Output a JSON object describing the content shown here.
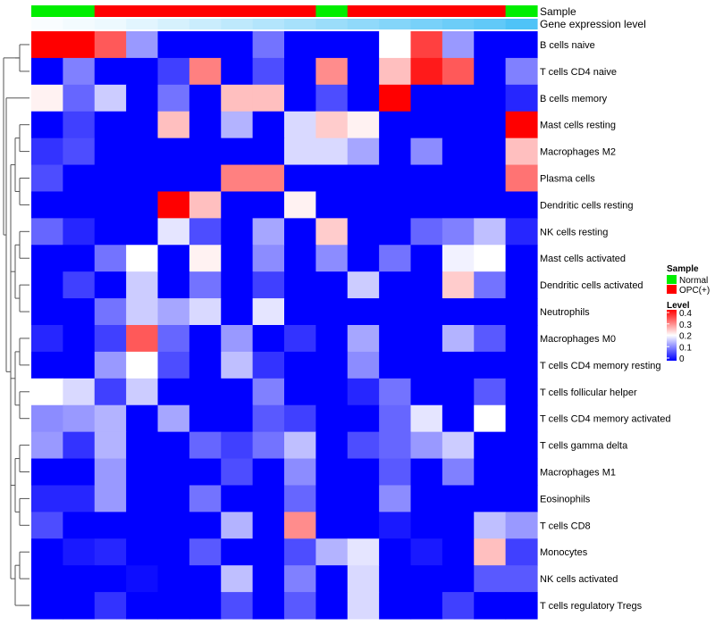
{
  "chart_data": {
    "type": "heatmap",
    "rows": [
      "B cells naive",
      "T cells CD4 naive",
      "B cells memory",
      "Mast cells resting",
      "Macrophages M2",
      "Plasma cells",
      "Dendritic cells resting",
      "NK cells resting",
      "Mast cells activated",
      "Dendritic cells activated",
      "Neutrophils",
      "Macrophages M0",
      "T cells CD4 memory resting",
      "T cells follicular helper",
      "T cells CD4 memory activated",
      "T cells gamma delta",
      "Macrophages M1",
      "Eosinophils",
      "T cells CD8",
      "Monocytes",
      "NK cells activated",
      "T cells regulatory  Tregs"
    ],
    "column_annotations": {
      "sample": {
        "label": "Sample",
        "values": [
          "Normal",
          "Normal",
          "OPC(+)",
          "OPC(+)",
          "OPC(+)",
          "OPC(+)",
          "OPC(+)",
          "OPC(+)",
          "OPC(+)",
          "Normal",
          "OPC(+)",
          "OPC(+)",
          "OPC(+)",
          "OPC(+)",
          "OPC(+)",
          "Normal"
        ]
      },
      "gene_expression": {
        "label": "Gene expression level",
        "values": [
          0.02,
          0.04,
          0.06,
          0.1,
          0.14,
          0.18,
          0.22,
          0.26,
          0.3,
          0.34,
          0.38,
          0.42,
          0.46,
          0.5,
          0.54,
          0.6
        ]
      }
    },
    "values": [
      [
        0.4,
        0.4,
        0.33,
        0.12,
        0,
        0,
        0,
        0.09,
        0,
        0,
        0,
        0.2,
        0.35,
        0.12,
        0,
        0
      ],
      [
        0,
        0.1,
        0,
        0,
        0.05,
        0.3,
        0,
        0.06,
        0,
        0.29,
        0,
        0.25,
        0.38,
        0.33,
        0,
        0.1
      ],
      [
        0.21,
        0.08,
        0.16,
        0,
        0.09,
        0,
        0.25,
        0.25,
        0,
        0.06,
        0,
        0.4,
        0,
        0,
        0,
        0.03
      ],
      [
        0,
        0.05,
        0,
        0,
        0.25,
        0,
        0.14,
        0,
        0.17,
        0.24,
        0.21,
        0,
        0,
        0,
        0,
        0.4
      ],
      [
        0.04,
        0.06,
        0,
        0,
        0,
        0,
        0,
        0,
        0.17,
        0.17,
        0.13,
        0,
        0.11,
        0,
        0,
        0.25
      ],
      [
        0.06,
        0,
        0,
        0,
        0,
        0,
        0.3,
        0.3,
        0,
        0,
        0,
        0,
        0,
        0,
        0,
        0.31
      ],
      [
        0,
        0,
        0,
        0,
        0.4,
        0.25,
        0,
        0,
        0.21,
        0,
        0,
        0,
        0,
        0,
        0,
        0
      ],
      [
        0.08,
        0.03,
        0,
        0,
        0.18,
        0.06,
        0,
        0.13,
        0,
        0.24,
        0,
        0,
        0.08,
        0.1,
        0.15,
        0.03
      ],
      [
        0,
        0,
        0.09,
        0.2,
        0,
        0.21,
        0,
        0.11,
        0,
        0.11,
        0,
        0.09,
        0,
        0.19,
        0.2,
        0
      ],
      [
        0,
        0.05,
        0,
        0.16,
        0,
        0.09,
        0,
        0.05,
        0,
        0,
        0.16,
        0,
        0,
        0.24,
        0.09,
        0
      ],
      [
        0,
        0,
        0.09,
        0.16,
        0.13,
        0.17,
        0,
        0.18,
        0,
        0,
        0,
        0,
        0,
        0,
        0,
        0
      ],
      [
        0.03,
        0,
        0.05,
        0.33,
        0.08,
        0,
        0.12,
        0,
        0.04,
        0,
        0.13,
        0,
        0,
        0.14,
        0.07,
        0
      ],
      [
        0,
        0,
        0.12,
        0.2,
        0.06,
        0,
        0.15,
        0.04,
        0,
        0,
        0.11,
        0,
        0,
        0,
        0,
        0
      ],
      [
        0.2,
        0.17,
        0.05,
        0.16,
        0,
        0,
        0,
        0.1,
        0,
        0,
        0.03,
        0.09,
        0,
        0,
        0.07,
        0
      ],
      [
        0.11,
        0.12,
        0.14,
        0,
        0.13,
        0,
        0,
        0.07,
        0.05,
        0,
        0,
        0.08,
        0.18,
        0,
        0.2,
        0
      ],
      [
        0.12,
        0.04,
        0.14,
        0,
        0,
        0.08,
        0.05,
        0.09,
        0.15,
        0,
        0.06,
        0.08,
        0.12,
        0.16,
        0,
        0
      ],
      [
        0,
        0,
        0.12,
        0,
        0,
        0,
        0.06,
        0,
        0.11,
        0,
        0,
        0.07,
        0,
        0.1,
        0,
        0
      ],
      [
        0.03,
        0.03,
        0.12,
        0,
        0,
        0.09,
        0,
        0,
        0.08,
        0,
        0,
        0.11,
        0,
        0,
        0,
        0
      ],
      [
        0.06,
        0,
        0,
        0,
        0,
        0,
        0.14,
        0,
        0.29,
        0,
        0,
        0.02,
        0,
        0,
        0.15,
        0.12
      ],
      [
        0,
        0.02,
        0.03,
        0,
        0,
        0.07,
        0,
        0,
        0.06,
        0.14,
        0.18,
        0,
        0.02,
        0,
        0.25,
        0.05
      ],
      [
        0,
        0,
        0,
        0.01,
        0,
        0,
        0.15,
        0,
        0.1,
        0,
        0.17,
        0,
        0,
        0,
        0.07,
        0.07
      ],
      [
        0,
        0,
        0.04,
        0,
        0,
        0,
        0.06,
        0,
        0.07,
        0,
        0.17,
        0,
        0,
        0.05,
        0,
        0
      ]
    ],
    "color_scale": {
      "min": 0,
      "max": 0.4,
      "low": "#0000ff",
      "mid": "#ffffff",
      "high": "#ff0000",
      "mid_value": 0.2
    }
  },
  "annotation_labels": {
    "sample": "Sample",
    "gene_expression": "Gene expression level"
  },
  "legend": {
    "sample_title": "Sample",
    "sample_items": [
      {
        "label": "Normal",
        "color": "#00ee00"
      },
      {
        "label": "OPC(+)",
        "color": "#ff0000"
      }
    ],
    "level_title": "Level",
    "level_ticks": [
      "0.4",
      "0.3",
      "0.2",
      "0.1",
      "0"
    ]
  },
  "colors": {
    "normal": "#00ee00",
    "opc": "#ff0000",
    "gene_low": "#ffffff",
    "gene_high": "#4fc3f7"
  }
}
